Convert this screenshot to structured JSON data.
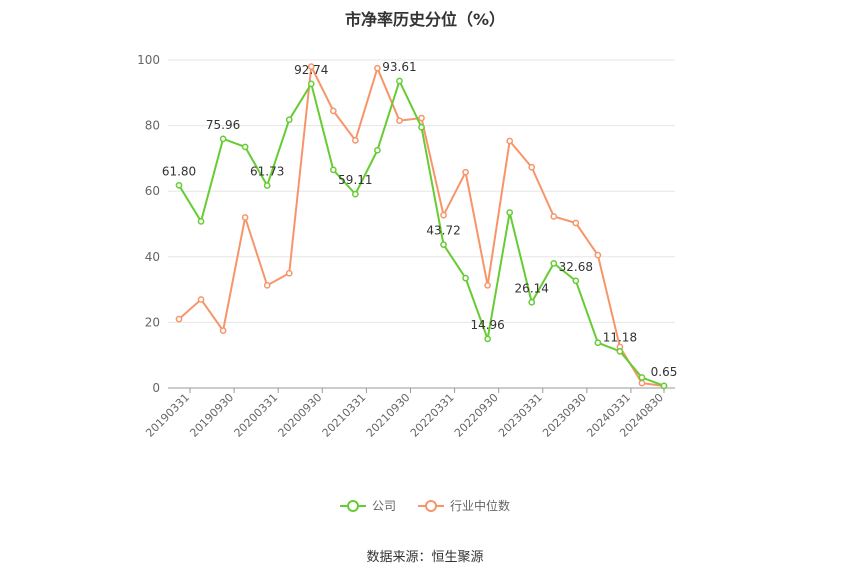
{
  "chart_data": {
    "type": "line",
    "title": "市净率历史分位（%）",
    "ylim": [
      0,
      100
    ],
    "yticks": [
      0,
      20,
      40,
      60,
      80,
      100
    ],
    "x_tick_labels": [
      "20190331",
      "20190930",
      "20200331",
      "20200930",
      "20210331",
      "20210930",
      "20220331",
      "20220930",
      "20230331",
      "20230930",
      "20240331",
      "20240830"
    ],
    "x": [
      "20190331",
      "20190630",
      "20190930",
      "20191231",
      "20200331",
      "20200630",
      "20200930",
      "20201231",
      "20210331",
      "20210630",
      "20210930",
      "20211231",
      "20220331",
      "20220630",
      "20220930",
      "20221231",
      "20230331",
      "20230630",
      "20230930",
      "20231231",
      "20240331",
      "20240630",
      "20240830"
    ],
    "series": [
      {
        "name": "公司",
        "color": "#66cc33",
        "values": [
          61.8,
          50.8,
          75.96,
          73.5,
          61.73,
          81.8,
          92.74,
          66.5,
          59.11,
          72.5,
          93.61,
          79.5,
          43.72,
          33.5,
          14.96,
          53.5,
          26.14,
          38.0,
          32.68,
          13.8,
          11.18,
          3.2,
          0.65
        ],
        "labels": {
          "0": "61.80",
          "2": "75.96",
          "4": "61.73",
          "6": "92.74",
          "8": "59.11",
          "10": "93.61",
          "12": "43.72",
          "14": "14.96",
          "16": "26.14",
          "18": "32.68",
          "20": "11.18",
          "22": "0.65"
        }
      },
      {
        "name": "行业中位数",
        "color": "#f7956a",
        "values": [
          21.0,
          27.0,
          17.5,
          52.0,
          31.3,
          35.0,
          98.0,
          84.5,
          75.5,
          97.5,
          81.5,
          82.3,
          52.7,
          65.8,
          31.3,
          75.3,
          67.3,
          52.3,
          50.3,
          40.5,
          12.5,
          1.5,
          0.6
        ]
      }
    ],
    "grid": true,
    "legend_position": "bottom"
  },
  "legend": {
    "company": "公司",
    "industry": "行业中位数"
  },
  "source": "数据来源：恒生聚源"
}
